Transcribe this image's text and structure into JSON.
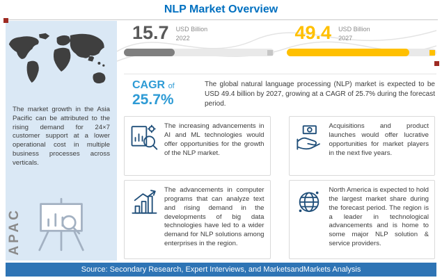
{
  "title": "NLP Market Overview",
  "chart_data": {
    "type": "bar",
    "categories": [
      "2022",
      "2027"
    ],
    "values": [
      15.7,
      49.4
    ],
    "title": "NLP Market Overview",
    "ylabel": "USD Billion",
    "annotations": [
      "CAGR of 25.7%"
    ],
    "legend_position": "none"
  },
  "sidebar": {
    "region_label": "APAC",
    "text": "The market growth in the Asia Pacific can be attributed to the rising demand for 24×7 customer support at a lower operational cost in multiple business processes across verticals.",
    "map_icon": "world-map",
    "easel_icon": "presentation-chart-magnifier"
  },
  "stats": {
    "start": {
      "value": "15.7",
      "unit": "USD Billion",
      "year": "2022",
      "fill_pct": 34
    },
    "end": {
      "value": "49.4",
      "unit": "USD Billion",
      "year": "2027",
      "fill_pct": 82
    }
  },
  "cagr": {
    "word": "CAGR",
    "of": "of",
    "value": "25.7%",
    "description": "The global natural language processing (NLP) market is expected to be USD 49.4 billion by 2027, growing at a CAGR of 25.7% during the forecast period."
  },
  "insights": [
    {
      "icon": "document-analytics-icon",
      "text": "The increasing advancements in AI and ML technologies would offer opportunities for the growth of the NLP market."
    },
    {
      "icon": "hand-money-icon",
      "text": "Acquisitions and product launches would offer lucrative opportunities for market players in the next five years."
    },
    {
      "icon": "growth-bars-icon",
      "text": "The advancements in computer programs that can analyze text and rising demand in the developments of big data technologies have led to a wider demand for NLP solutions among enterprises in the region."
    },
    {
      "icon": "globe-network-icon",
      "text": "North America is expected to hold the largest market share during the forecast period. The region is a leader in technological advancements and is home to some major NLP solution & service providers."
    }
  ],
  "footer": {
    "text": "Source: Secondary Research, Expert Interviews, and MarketsandMarkets Analysis"
  },
  "colors": {
    "title_blue": "#0070C0",
    "panel_blue": "#DAE8F5",
    "value_yellow": "#FFC000",
    "value_gray": "#595959",
    "cagr_blue": "#2E9BD5",
    "footer_blue": "#2E74B5",
    "marker_red": "#9E2B23",
    "icon_navy": "#1F4E79"
  }
}
